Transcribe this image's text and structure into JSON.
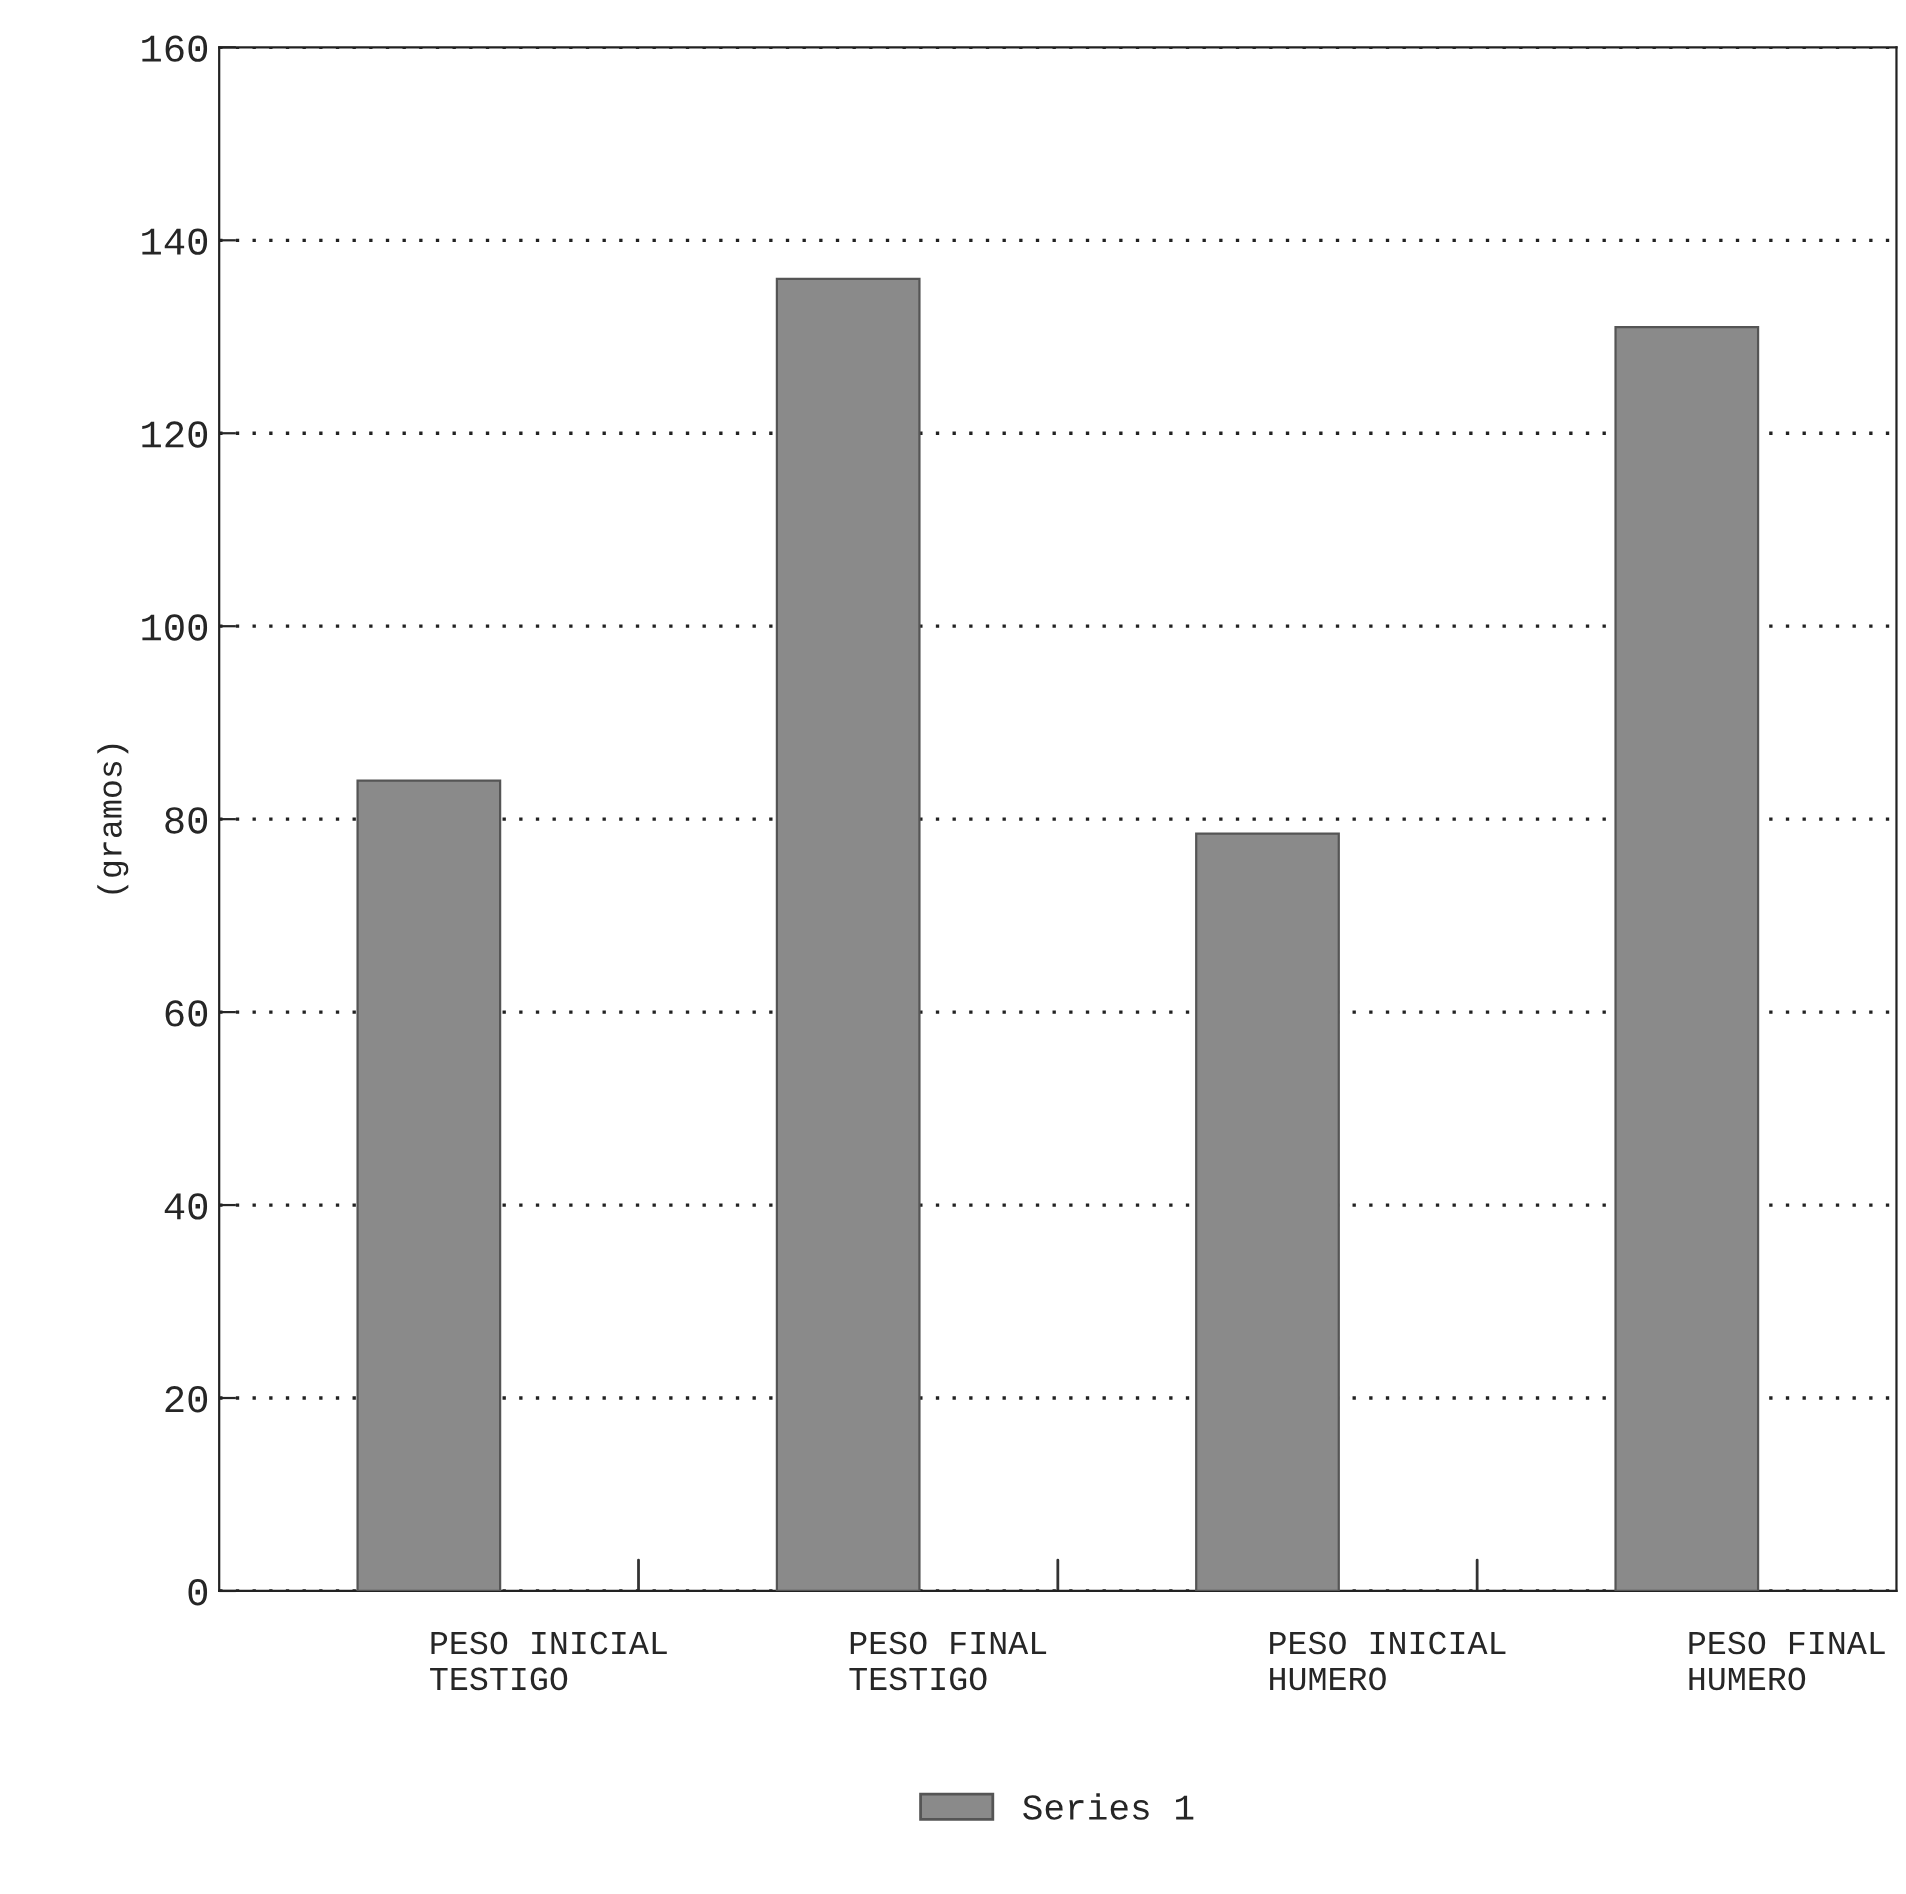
{
  "chart_data": {
    "type": "bar",
    "ylabel": "(gramos)",
    "categories": [
      "PESO INICIAL\nTESTIGO",
      "PESO FINAL\nTESTIGO",
      "PESO INICIAL\nHUMERO",
      "PESO FINAL\nHUMERO"
    ],
    "series": [
      {
        "name": "Series 1",
        "color": "#8a8a8a",
        "values": [
          84,
          136,
          78.5,
          131
        ]
      }
    ],
    "ylim": [
      0,
      160
    ],
    "yticks": [
      0,
      20,
      40,
      60,
      80,
      100,
      120,
      140,
      160
    ],
    "grid": "y",
    "legend": "bottom"
  }
}
